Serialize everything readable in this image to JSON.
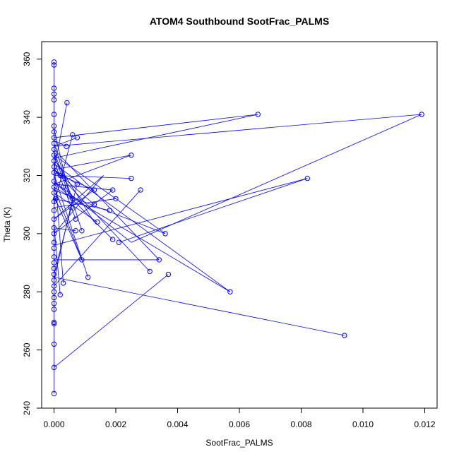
{
  "chart_data": {
    "type": "line",
    "title": "ATOM4 Southbound SootFrac_PALMS",
    "xlabel": "SootFrac_PALMS",
    "ylabel": "Theta (K)",
    "xlim": [
      -0.0004,
      0.0124
    ],
    "ylim": [
      240,
      366
    ],
    "xticks": [
      0.0,
      0.002,
      0.004,
      0.006,
      0.008,
      0.01,
      0.012
    ],
    "xtick_labels": [
      "0.000",
      "0.002",
      "0.004",
      "0.006",
      "0.008",
      "0.010",
      "0.012"
    ],
    "yticks": [
      240,
      260,
      280,
      300,
      320,
      340,
      360
    ],
    "ytick_labels": [
      "240",
      "260",
      "280",
      "300",
      "320",
      "340",
      "360"
    ],
    "grid": false,
    "series": [
      {
        "color": "#0000ff",
        "points": [
          [
            0.0,
            245
          ],
          [
            0.0,
            254
          ],
          [
            0.0,
            262
          ],
          [
            0.0,
            269
          ],
          [
            0.0,
            269.5
          ],
          [
            0.0,
            274
          ],
          [
            0.0,
            276
          ],
          [
            0.0,
            278
          ],
          [
            0.0,
            280
          ],
          [
            0.0,
            282
          ],
          [
            0.0,
            284
          ],
          [
            0.0,
            286
          ],
          [
            0.0,
            288
          ],
          [
            0.0,
            290
          ],
          [
            0.0,
            292
          ],
          [
            0.0,
            295
          ],
          [
            0.0,
            297
          ],
          [
            0.0,
            300
          ],
          [
            0.0,
            302
          ],
          [
            0.0,
            305
          ],
          [
            0.0,
            308
          ],
          [
            0.0,
            311
          ],
          [
            0.0,
            314
          ],
          [
            0.0,
            316
          ],
          [
            0.0,
            318
          ],
          [
            0.0,
            321
          ],
          [
            0.0,
            323
          ],
          [
            0.0,
            325
          ],
          [
            0.0,
            327
          ],
          [
            0.0,
            329
          ],
          [
            0.0,
            331
          ],
          [
            0.0,
            333
          ],
          [
            0.0,
            335
          ],
          [
            0.0,
            337
          ],
          [
            0.0,
            341
          ],
          [
            0.0,
            346
          ],
          [
            0.0,
            348
          ],
          [
            0.0,
            350
          ],
          [
            0.0,
            358
          ],
          [
            0.0,
            359
          ],
          [
            0.00042,
            345
          ],
          [
            0.0006,
            334
          ],
          [
            0.00075,
            333
          ],
          [
            0.0004,
            330
          ],
          [
            0.0002,
            320
          ],
          [
            0.0003,
            316
          ],
          [
            5e-05,
            312
          ],
          [
            0.0005,
            313
          ],
          [
            0.0006,
            312
          ],
          [
            0.00075,
            317
          ],
          [
            0.00055,
            309
          ],
          [
            0.0007,
            301
          ],
          [
            0.0009,
            301
          ],
          [
            0.0007,
            305
          ],
          [
            0.0009,
            291
          ],
          [
            0.0011,
            285
          ],
          [
            0.0002,
            279
          ],
          [
            0.0003,
            283
          ],
          [
            0.0013,
            310
          ],
          [
            0.0013,
            315
          ],
          [
            0.0014,
            304
          ],
          [
            0.0018,
            308
          ],
          [
            0.0019,
            315
          ],
          [
            0.0019,
            298
          ],
          [
            0.0021,
            297
          ],
          [
            0.002,
            312
          ],
          [
            0.0025,
            319
          ],
          [
            0.0025,
            327
          ],
          [
            0.0028,
            315
          ],
          [
            0.0031,
            287
          ],
          [
            0.0034,
            291
          ],
          [
            0.0036,
            300
          ],
          [
            0.0037,
            286
          ],
          [
            0.0057,
            280
          ],
          [
            0.0066,
            341
          ],
          [
            0.0082,
            319
          ],
          [
            0.0094,
            265
          ],
          [
            0.0119,
            341
          ]
        ],
        "lines": [
          [
            [
              0.0,
              245
            ],
            [
              0.0,
              359
            ]
          ],
          [
            [
              0.00042,
              345
            ],
            [
              0.0,
              322
            ]
          ],
          [
            [
              0.0,
              330
            ],
            [
              0.00075,
              333
            ]
          ],
          [
            [
              0.0,
              333
            ],
            [
              0.0066,
              341
            ]
          ],
          [
            [
              0.0,
              326
            ],
            [
              0.0066,
              341
            ]
          ],
          [
            [
              0.0,
              330
            ],
            [
              0.0119,
              341
            ]
          ],
          [
            [
              0.0119,
              341
            ],
            [
              0.0025,
              297
            ]
          ],
          [
            [
              0.0,
              322
            ],
            [
              0.0025,
              327
            ]
          ],
          [
            [
              0.0,
              317
            ],
            [
              0.0025,
              327
            ]
          ],
          [
            [
              0.0,
              320
            ],
            [
              0.0025,
              319
            ]
          ],
          [
            [
              0.0,
              327
            ],
            [
              0.0036,
              300
            ]
          ],
          [
            [
              0.0,
              324
            ],
            [
              0.0057,
              280
            ]
          ],
          [
            [
              0.0,
              316
            ],
            [
              0.0057,
              280
            ]
          ],
          [
            [
              0.0,
              329
            ],
            [
              0.0034,
              291
            ]
          ],
          [
            [
              0.0,
              322
            ],
            [
              0.0031,
              287
            ]
          ],
          [
            [
              0.0,
              296
            ],
            [
              0.0082,
              319
            ]
          ],
          [
            [
              0.0082,
              319
            ],
            [
              0.0021,
              297
            ]
          ],
          [
            [
              0.0,
              285
            ],
            [
              0.0094,
              265
            ]
          ],
          [
            [
              0.0,
              254
            ],
            [
              0.0037,
              286
            ]
          ],
          [
            [
              0.0,
              291
            ],
            [
              0.0034,
              291
            ]
          ],
          [
            [
              0.0009,
              291
            ],
            [
              0.0,
              313
            ]
          ],
          [
            [
              0.0,
              282
            ],
            [
              0.0028,
              315
            ]
          ],
          [
            [
              0.0,
              300
            ],
            [
              0.0019,
              315
            ]
          ],
          [
            [
              0.0,
              305
            ],
            [
              0.0013,
              315
            ]
          ],
          [
            [
              0.0,
              318
            ],
            [
              0.0019,
              298
            ]
          ],
          [
            [
              0.0,
              314
            ],
            [
              0.0014,
              304
            ]
          ],
          [
            [
              0.0,
              312
            ],
            [
              0.0018,
              308
            ]
          ],
          [
            [
              0.0,
              309
            ],
            [
              0.002,
              312
            ]
          ],
          [
            [
              0.0,
              331
            ],
            [
              0.0009,
              301
            ]
          ],
          [
            [
              0.0,
              325
            ],
            [
              0.0007,
              305
            ]
          ],
          [
            [
              0.0,
              320
            ],
            [
              0.0011,
              285
            ]
          ],
          [
            [
              0.0,
              316
            ],
            [
              0.0009,
              291
            ]
          ],
          [
            [
              0.0,
              328
            ],
            [
              0.0006,
              312
            ]
          ],
          [
            [
              0.0,
              327
            ],
            [
              0.0005,
              313
            ]
          ],
          [
            [
              0.0002,
              279
            ],
            [
              0.0,
              303
            ]
          ],
          [
            [
              0.0003,
              283
            ],
            [
              0.0,
              325
            ]
          ],
          [
            [
              0.00075,
              317
            ],
            [
              0.0,
              322
            ]
          ],
          [
            [
              0.0,
              322
            ],
            [
              0.0013,
              310
            ]
          ],
          [
            [
              0.0,
              317
            ],
            [
              0.0019,
              315
            ]
          ],
          [
            [
              0.0,
              305
            ],
            [
              0.0016,
              320
            ]
          ],
          [
            [
              0.0,
              300
            ],
            [
              0.0016,
              320
            ]
          ],
          [
            [
              0.0,
              286
            ],
            [
              0.00075,
              317
            ]
          ],
          [
            [
              0.0,
              310
            ],
            [
              0.0006,
              334
            ]
          ],
          [
            [
              0.0,
              326
            ],
            [
              0.0013,
              304
            ]
          ],
          [
            [
              0.0,
              332
            ],
            [
              0.0004,
              330
            ]
          ],
          [
            [
              0.0,
              315
            ],
            [
              0.0036,
              300
            ]
          ],
          [
            [
              0.0,
              318
            ],
            [
              0.0025,
              297
            ]
          ],
          [
            [
              0.0,
              321
            ],
            [
              0.0013,
              315
            ]
          ],
          [
            [
              0.0,
              284
            ],
            [
              0.0006,
              312
            ]
          ],
          [
            [
              0.0,
              336
            ],
            [
              0.0005,
              313
            ]
          ],
          [
            [
              0.0,
              302
            ],
            [
              0.0007,
              301
            ]
          ]
        ]
      }
    ]
  }
}
